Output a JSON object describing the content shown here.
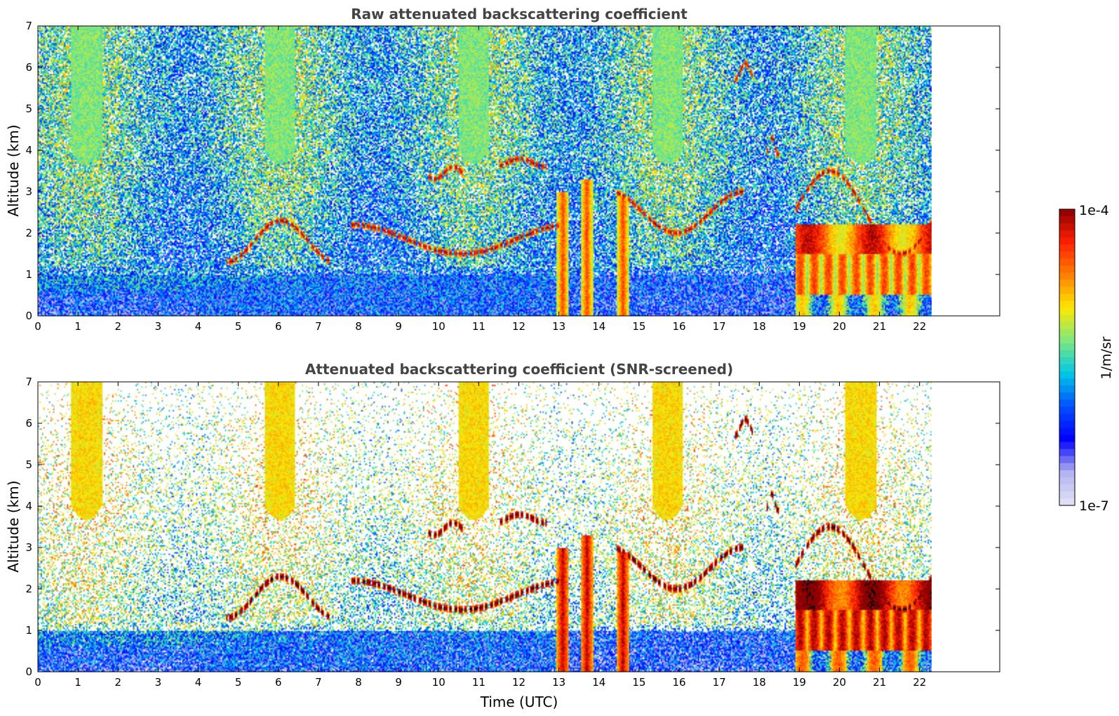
{
  "chart_data": [
    {
      "type": "heatmap",
      "title": "Raw attenuated backscattering coefficient",
      "xlabel": "",
      "ylabel": "Altitude (km)",
      "xlim": [
        0,
        24
      ],
      "ylim": [
        0,
        7
      ],
      "xticks": [
        "0",
        "1",
        "2",
        "3",
        "4",
        "5",
        "6",
        "7",
        "8",
        "9",
        "10",
        "11",
        "12",
        "13",
        "14",
        "15",
        "16",
        "17",
        "18",
        "19",
        "20",
        "21",
        "22"
      ],
      "yticks": [
        "0",
        "1",
        "2",
        "3",
        "4",
        "5",
        "6",
        "7"
      ],
      "data_end_hour": 22.3,
      "screened": false,
      "cloud_layers": [
        {
          "t0": 4.7,
          "t1": 7.3,
          "h0": 1.3,
          "h1": 2.3
        },
        {
          "t0": 7.8,
          "t1": 13.0,
          "h0": 1.5,
          "h1": 2.2
        },
        {
          "t0": 9.7,
          "t1": 10.6,
          "h0": 3.3,
          "h1": 3.6
        },
        {
          "t0": 11.5,
          "t1": 12.7,
          "h0": 3.6,
          "h1": 3.8
        },
        {
          "t0": 14.4,
          "t1": 17.6,
          "h0": 2.0,
          "h1": 3.0
        },
        {
          "t0": 17.4,
          "t1": 17.9,
          "h0": 5.7,
          "h1": 6.1
        },
        {
          "t0": 18.2,
          "t1": 18.5,
          "h0": 3.9,
          "h1": 4.3
        },
        {
          "t0": 18.9,
          "t1": 22.3,
          "h0": 1.5,
          "h1": 3.5
        }
      ],
      "precipitation_shafts": [
        {
          "t0": 12.95,
          "t1": 13.25,
          "top": 3.0
        },
        {
          "t0": 13.55,
          "t1": 13.85,
          "top": 3.3
        },
        {
          "t0": 14.45,
          "t1": 14.75,
          "top": 2.9
        },
        {
          "t0": 18.9,
          "t1": 22.3,
          "top": 2.2
        }
      ]
    },
    {
      "type": "heatmap",
      "title": "Attenuated backscattering coefficient (SNR-screened)",
      "xlabel": "Time (UTC)",
      "ylabel": "Altitude (km)",
      "xlim": [
        0,
        24
      ],
      "ylim": [
        0,
        7
      ],
      "xticks": [
        "0",
        "1",
        "2",
        "3",
        "4",
        "5",
        "6",
        "7",
        "8",
        "9",
        "10",
        "11",
        "12",
        "13",
        "14",
        "15",
        "16",
        "17",
        "18",
        "19",
        "20",
        "21",
        "22"
      ],
      "yticks": [
        "0",
        "1",
        "2",
        "3",
        "4",
        "5",
        "6",
        "7"
      ],
      "data_end_hour": 22.3,
      "screened": true
    }
  ],
  "colorbar": {
    "label": "1/m/sr",
    "max_label": "1e-4",
    "min_label": "1e-7",
    "scale": "log",
    "range": [
      1e-07,
      0.0001
    ],
    "colormap": [
      "#e4e4f6",
      "#b3b3f0",
      "#0000ff",
      "#0050ff",
      "#00c8e8",
      "#7fe87f",
      "#ffe800",
      "#ff8000",
      "#ff2000",
      "#8b0000"
    ]
  }
}
